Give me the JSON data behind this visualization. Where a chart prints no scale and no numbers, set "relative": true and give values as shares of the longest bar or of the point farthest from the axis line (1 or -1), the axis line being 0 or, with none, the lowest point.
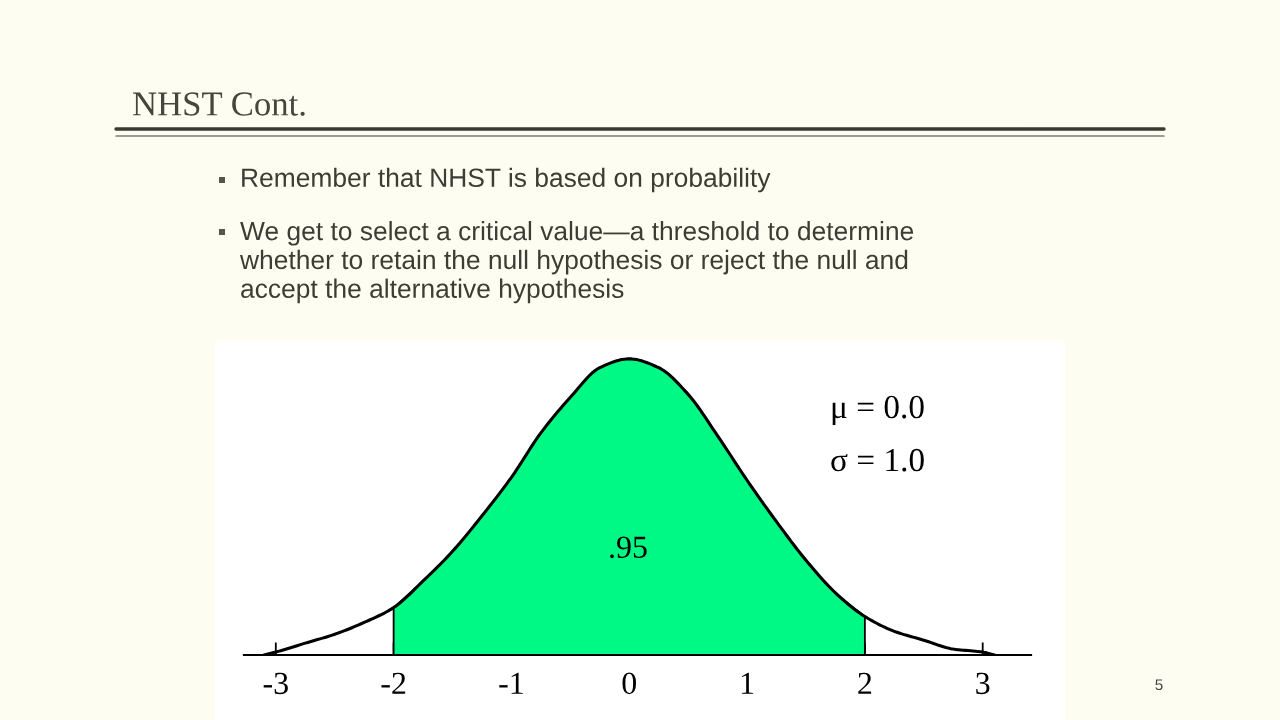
{
  "chart_data": {
    "type": "line",
    "title": "NHST Cont.",
    "annotations": [
      "Remember that NHST is based on probability",
      "We get to select a critical value—a threshold to determine\nwhether to retain the null hypothesis or reject the null and\naccept the alternative hypothesis",
      ".95",
      "μ = 0.0",
      "σ = 1.0",
      "5"
    ],
    "relative": true,
    "xlim": [
      -3.27,
      3.41
    ],
    "xticks": [
      -3,
      -2,
      -1,
      0,
      1,
      2,
      3
    ],
    "series": [
      {
        "type": "area",
        "color": "#00f884",
        "x": [
          -2.0,
          -1.75,
          -1.5,
          -1.25,
          -1.0,
          -0.75,
          -0.5,
          -0.25,
          0,
          0.25,
          0.5,
          0.75,
          1.0,
          1.25,
          1.5,
          1.75,
          2.0
        ],
        "values": [
          0.16,
          0.25,
          0.35,
          0.47,
          0.6,
          0.75,
          0.87,
          0.97,
          1.0,
          0.97,
          0.88,
          0.74,
          0.59,
          0.45,
          0.32,
          0.21,
          0.13
        ]
      },
      {
        "color": "#000000",
        "x": [
          -3.1,
          -3.0,
          -2.75,
          -2.5,
          -2.25,
          -2.0,
          -1.75,
          -1.5,
          -1.25,
          -1.0,
          -0.75,
          -0.5,
          -0.25,
          0,
          0.25,
          0.5,
          0.75,
          1.0,
          1.25,
          1.5,
          1.75,
          2.0,
          2.25,
          2.5,
          2.75,
          3.0,
          3.1
        ],
        "values": [
          0,
          0.01,
          0.04,
          0.07,
          0.11,
          0.16,
          0.25,
          0.35,
          0.47,
          0.6,
          0.75,
          0.87,
          0.97,
          1.0,
          0.97,
          0.88,
          0.74,
          0.59,
          0.45,
          0.32,
          0.21,
          0.13,
          0.08,
          0.05,
          0.02,
          0.01,
          0
        ]
      }
    ]
  }
}
